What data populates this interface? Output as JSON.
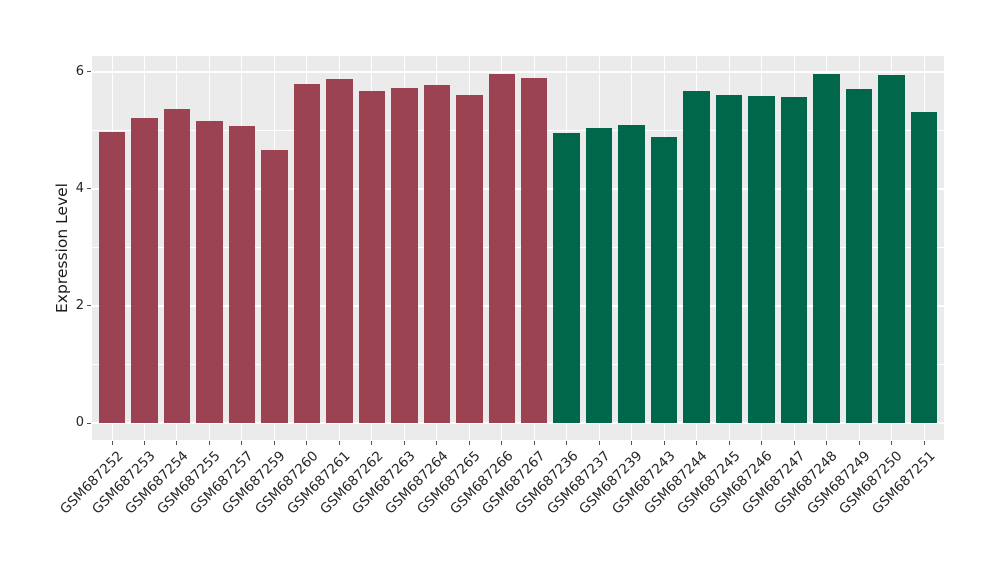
{
  "figure": {
    "background": "#FFFFFF",
    "panel_background": "#EBEBEB",
    "grid_color": "#FFFFFF",
    "tick_color": "#555555"
  },
  "chart_data": {
    "type": "bar",
    "title": "",
    "xlabel": "",
    "ylabel": "Expression Level",
    "ylim": [
      -0.29,
      6.27
    ],
    "yticks": [
      0,
      2,
      4,
      6
    ],
    "yticks_minor": [
      1,
      3,
      5
    ],
    "grid": true,
    "legend": false,
    "x_tick_rotation": 45,
    "group_colors": [
      "#9B4353",
      "#00674A"
    ],
    "categories": [
      "GSM687252",
      "GSM687253",
      "GSM687254",
      "GSM687255",
      "GSM687257",
      "GSM687259",
      "GSM687260",
      "GSM687261",
      "GSM687262",
      "GSM687263",
      "GSM687264",
      "GSM687265",
      "GSM687266",
      "GSM687267",
      "GSM687236",
      "GSM687237",
      "GSM687239",
      "GSM687243",
      "GSM687244",
      "GSM687245",
      "GSM687246",
      "GSM687247",
      "GSM687248",
      "GSM687249",
      "GSM687250",
      "GSM687251"
    ],
    "values": [
      4.97,
      5.21,
      5.37,
      5.16,
      5.08,
      4.67,
      5.79,
      5.88,
      5.68,
      5.73,
      5.78,
      5.61,
      5.97,
      5.9,
      4.96,
      5.04,
      5.09,
      4.89,
      5.68,
      5.61,
      5.59,
      5.57,
      5.97,
      5.71,
      5.95,
      5.32
    ],
    "bar_colors": [
      "#9B4353",
      "#9B4353",
      "#9B4353",
      "#9B4353",
      "#9B4353",
      "#9B4353",
      "#9B4353",
      "#9B4353",
      "#9B4353",
      "#9B4353",
      "#9B4353",
      "#9B4353",
      "#9B4353",
      "#9B4353",
      "#00674A",
      "#00674A",
      "#00674A",
      "#00674A",
      "#00674A",
      "#00674A",
      "#00674A",
      "#00674A",
      "#00674A",
      "#00674A",
      "#00674A",
      "#00674A"
    ]
  }
}
